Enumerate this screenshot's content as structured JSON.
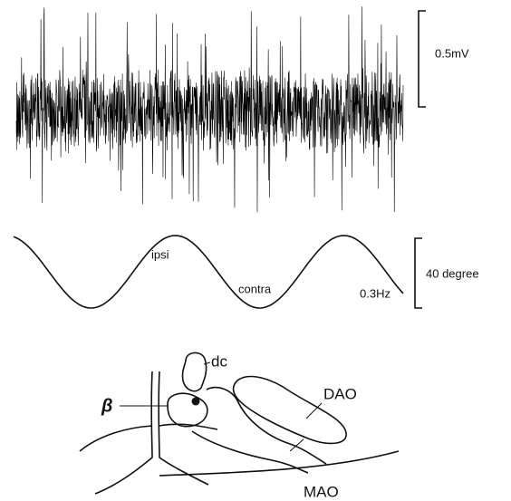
{
  "trace_scale": "0.5mV",
  "stimulus": {
    "peak_label": "ipsi",
    "trough_label": "contra",
    "frequency": "0.3Hz",
    "scale": "40 degree"
  },
  "diagram": {
    "labels": {
      "dc": "dc",
      "beta": "β",
      "dao": "DAO",
      "mao": "MAO"
    }
  }
}
